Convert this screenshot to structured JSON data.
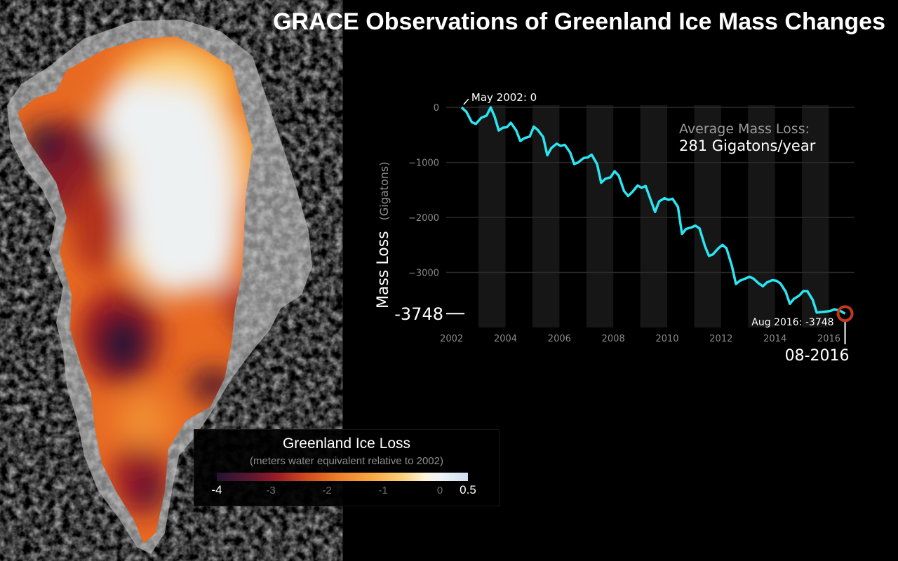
{
  "title": "GRACE Observations of Greenland Ice Mass Changes",
  "colors": {
    "series": "#29e6f2",
    "marker": "#c4381a",
    "band": "#161616",
    "background": "#000000"
  },
  "chart_data": {
    "type": "line",
    "xlabel": "",
    "ylabel": "Mass Loss",
    "ylabel_unit": "(Gigatons)",
    "xlim": [
      2001.8,
      2016.95
    ],
    "ylim": [
      -4000,
      40
    ],
    "x_ticks": [
      "2002",
      "2004",
      "2006",
      "2008",
      "2010",
      "2012",
      "2014",
      "2016"
    ],
    "y_ticks": [
      "0",
      "−1000",
      "−2000",
      "−3000"
    ],
    "grid": true,
    "series": [
      {
        "name": "",
        "x": [
          2002.37,
          2002.55,
          2002.75,
          2002.9,
          2003.1,
          2003.3,
          2003.45,
          2003.6,
          2003.75,
          2003.9,
          2004.05,
          2004.2,
          2004.4,
          2004.55,
          2004.7,
          2004.9,
          2005.05,
          2005.2,
          2005.4,
          2005.55,
          2005.7,
          2005.9,
          2006.05,
          2006.2,
          2006.4,
          2006.55,
          2006.7,
          2006.9,
          2007.05,
          2007.2,
          2007.4,
          2007.55,
          2007.7,
          2007.9,
          2008.05,
          2008.2,
          2008.4,
          2008.55,
          2008.7,
          2008.9,
          2009.05,
          2009.2,
          2009.4,
          2009.55,
          2009.7,
          2009.9,
          2010.05,
          2010.2,
          2010.4,
          2010.55,
          2010.7,
          2010.9,
          2011.05,
          2011.2,
          2011.4,
          2011.55,
          2011.7,
          2011.9,
          2012.05,
          2012.2,
          2012.4,
          2012.55,
          2012.7,
          2012.9,
          2013.05,
          2013.2,
          2013.4,
          2013.55,
          2013.7,
          2013.9,
          2014.05,
          2014.2,
          2014.4,
          2014.55,
          2014.7,
          2014.9,
          2015.05,
          2015.2,
          2015.4,
          2015.55,
          2015.7,
          2015.9,
          2016.05,
          2016.2,
          2016.4,
          2016.6
        ],
        "y": [
          0,
          -80,
          -270,
          -300,
          -190,
          -150,
          0,
          -170,
          -420,
          -370,
          -360,
          -280,
          -420,
          -610,
          -560,
          -530,
          -350,
          -410,
          -540,
          -870,
          -740,
          -660,
          -700,
          -680,
          -820,
          -1030,
          -1000,
          -920,
          -910,
          -860,
          -1030,
          -1370,
          -1300,
          -1270,
          -1160,
          -1240,
          -1520,
          -1610,
          -1540,
          -1420,
          -1460,
          -1430,
          -1700,
          -1900,
          -1710,
          -1650,
          -1680,
          -1660,
          -1810,
          -2300,
          -2210,
          -2180,
          -2150,
          -2200,
          -2520,
          -2700,
          -2670,
          -2560,
          -2500,
          -2560,
          -2880,
          -3210,
          -3150,
          -3110,
          -3080,
          -3110,
          -3200,
          -3250,
          -3180,
          -3140,
          -3150,
          -3200,
          -3350,
          -3570,
          -3480,
          -3420,
          -3340,
          -3340,
          -3500,
          -3730,
          -3720,
          -3710,
          -3700,
          -3670,
          -3690,
          -3748
        ]
      }
    ],
    "annotations": {
      "start": "May 2002: 0",
      "end": "Aug 2016: -3748",
      "current_value": "-3748",
      "current_date": "08-2016",
      "avg_label": "Average Mass Loss:",
      "avg_value": "281 Gigatons/year"
    }
  },
  "legend": {
    "title": "Greenland Ice Loss",
    "subtitle": "(meters water equivalent relative to 2002)",
    "ticks": [
      "-4",
      "-3",
      "-2",
      "-1",
      "0",
      "0.5"
    ]
  }
}
